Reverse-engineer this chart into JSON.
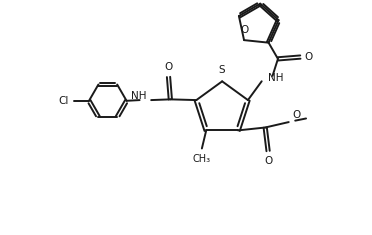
{
  "background_color": "#ffffff",
  "line_color": "#1a1a1a",
  "line_width": 1.4,
  "font_size": 7.5,
  "figsize": [
    3.72,
    2.35
  ],
  "dpi": 100,
  "xlim": [
    0,
    10
  ],
  "ylim": [
    0,
    6.5
  ]
}
